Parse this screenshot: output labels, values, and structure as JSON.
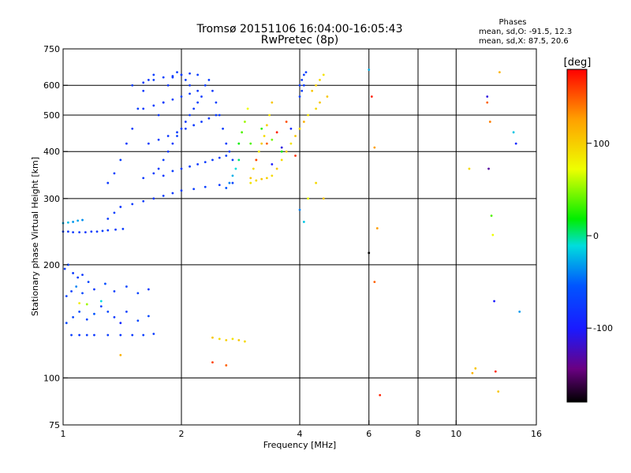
{
  "title_line1": "Tromsø 20151106 16:04:00-16:05:43",
  "title_line2": "RwPretec (8p)",
  "legend": {
    "heading": "Phases",
    "line_o": "mean, sd,O: -91.5, 12.3",
    "line_x": "mean, sd,X:  87.5, 20.6"
  },
  "colorbar": {
    "unit_label": "[deg]",
    "range": [
      -180,
      180
    ],
    "ticks": [
      {
        "value": 100,
        "label": "100"
      },
      {
        "value": 0,
        "label": "0"
      },
      {
        "value": -100,
        "label": "-100"
      }
    ]
  },
  "chart_data": {
    "type": "scatter",
    "title": "Tromsø 20151106 16:04:00-16:05:43 RwPretec (8p)",
    "xlabel": "Frequency [MHz]",
    "ylabel": "Stationary phase Virtual Height [km]",
    "x_scale": "log",
    "y_scale": "log",
    "xlim": [
      1,
      16
    ],
    "ylim": [
      75,
      750
    ],
    "x_ticks": [
      {
        "value": 1,
        "label": "1"
      },
      {
        "value": 2,
        "label": "2"
      },
      {
        "value": 4,
        "label": "4"
      },
      {
        "value": 6,
        "label": "6"
      },
      {
        "value": 8,
        "label": "8"
      },
      {
        "value": 10,
        "label": "10"
      },
      {
        "value": 16,
        "label": "16"
      }
    ],
    "y_ticks": [
      {
        "value": 75,
        "label": "75"
      },
      {
        "value": 100,
        "label": "100"
      },
      {
        "value": 200,
        "label": "200"
      },
      {
        "value": 300,
        "label": "300"
      },
      {
        "value": 400,
        "label": "400"
      },
      {
        "value": 500,
        "label": "500"
      },
      {
        "value": 600,
        "label": "600"
      },
      {
        "value": 750,
        "label": "750"
      }
    ],
    "grid_x": [
      2,
      4,
      6,
      8,
      10
    ],
    "grid_y": [
      100,
      200,
      300,
      400,
      500,
      600
    ],
    "color_encoding": "phase [deg]",
    "points": [
      [
        1.0,
        245,
        -95
      ],
      [
        1.03,
        245,
        -100
      ],
      [
        1.06,
        244,
        -98
      ],
      [
        1.1,
        244,
        -96
      ],
      [
        1.14,
        244,
        -102
      ],
      [
        1.18,
        245,
        -97
      ],
      [
        1.22,
        245,
        -99
      ],
      [
        1.26,
        246,
        -95
      ],
      [
        1.3,
        247,
        -100
      ],
      [
        1.36,
        248,
        -98
      ],
      [
        1.42,
        249,
        -97
      ],
      [
        1.0,
        258,
        -40
      ],
      [
        1.03,
        259,
        -35
      ],
      [
        1.06,
        260,
        -50
      ],
      [
        1.09,
        262,
        -45
      ],
      [
        1.12,
        263,
        -55
      ],
      [
        1.05,
        130,
        -95
      ],
      [
        1.1,
        130,
        -98
      ],
      [
        1.15,
        130,
        -97
      ],
      [
        1.2,
        130,
        -100
      ],
      [
        1.3,
        130,
        -96
      ],
      [
        1.4,
        130,
        -99
      ],
      [
        1.5,
        130,
        -98
      ],
      [
        1.6,
        130,
        -95
      ],
      [
        1.7,
        131,
        -97
      ],
      [
        1.02,
        140,
        -88
      ],
      [
        1.06,
        145,
        -90
      ],
      [
        1.1,
        150,
        -85
      ],
      [
        1.15,
        143,
        -92
      ],
      [
        1.2,
        148,
        -80
      ],
      [
        1.25,
        155,
        -95
      ],
      [
        1.3,
        150,
        -90
      ],
      [
        1.35,
        145,
        -100
      ],
      [
        1.4,
        140,
        -110
      ],
      [
        1.45,
        150,
        -95
      ],
      [
        1.55,
        142,
        -90
      ],
      [
        1.65,
        146,
        -88
      ],
      [
        1.02,
        165,
        -90
      ],
      [
        1.05,
        170,
        -95
      ],
      [
        1.08,
        175,
        -60
      ],
      [
        1.12,
        168,
        -88
      ],
      [
        1.16,
        180,
        -92
      ],
      [
        1.2,
        172,
        -100
      ],
      [
        1.28,
        178,
        -85
      ],
      [
        1.35,
        170,
        -95
      ],
      [
        1.45,
        175,
        -90
      ],
      [
        1.55,
        168,
        -92
      ],
      [
        1.65,
        172,
        -100
      ],
      [
        1.01,
        195,
        -95
      ],
      [
        1.03,
        200,
        -90
      ],
      [
        1.06,
        190,
        -98
      ],
      [
        1.09,
        185,
        -96
      ],
      [
        1.12,
        188,
        -100
      ],
      [
        1.1,
        158,
        90
      ],
      [
        1.15,
        157,
        60
      ],
      [
        1.25,
        160,
        -20
      ],
      [
        1.4,
        115,
        120
      ],
      [
        1.3,
        265,
        -98
      ],
      [
        1.35,
        275,
        -95
      ],
      [
        1.4,
        285,
        -100
      ],
      [
        1.5,
        290,
        -97
      ],
      [
        1.6,
        295,
        -96
      ],
      [
        1.7,
        300,
        -99
      ],
      [
        1.8,
        305,
        -95
      ],
      [
        1.9,
        310,
        -98
      ],
      [
        2.0,
        315,
        -100
      ],
      [
        2.15,
        318,
        -97
      ],
      [
        2.3,
        322,
        -95
      ],
      [
        2.5,
        326,
        -98
      ],
      [
        2.7,
        330,
        -90
      ],
      [
        1.3,
        330,
        -98
      ],
      [
        1.35,
        350,
        -95
      ],
      [
        1.4,
        380,
        -96
      ],
      [
        1.45,
        420,
        -100
      ],
      [
        1.5,
        460,
        -97
      ],
      [
        1.55,
        520,
        -95
      ],
      [
        1.6,
        580,
        -98
      ],
      [
        1.65,
        620,
        -100
      ],
      [
        1.7,
        640,
        -96
      ],
      [
        1.75,
        500,
        -98
      ],
      [
        1.8,
        540,
        -95
      ],
      [
        1.85,
        600,
        -100
      ],
      [
        1.9,
        630,
        -97
      ],
      [
        1.95,
        650,
        -96
      ],
      [
        2.0,
        640,
        -98
      ],
      [
        2.05,
        620,
        -95
      ],
      [
        2.1,
        600,
        -100
      ],
      [
        1.75,
        360,
        -97
      ],
      [
        1.8,
        380,
        -96
      ],
      [
        1.85,
        400,
        -98
      ],
      [
        1.9,
        420,
        -100
      ],
      [
        1.95,
        440,
        -95
      ],
      [
        2.0,
        460,
        -97
      ],
      [
        2.05,
        480,
        -96
      ],
      [
        2.1,
        500,
        -98
      ],
      [
        2.15,
        520,
        -100
      ],
      [
        2.2,
        540,
        -95
      ],
      [
        2.25,
        560,
        -98
      ],
      [
        2.3,
        600,
        -97
      ],
      [
        2.35,
        620,
        -96
      ],
      [
        2.4,
        580,
        -100
      ],
      [
        2.45,
        540,
        -95
      ],
      [
        2.5,
        500,
        -98
      ],
      [
        2.55,
        460,
        -97
      ],
      [
        2.6,
        420,
        -96
      ],
      [
        2.65,
        400,
        -100
      ],
      [
        2.7,
        380,
        -95
      ],
      [
        1.6,
        340,
        -98
      ],
      [
        1.7,
        350,
        -97
      ],
      [
        1.8,
        345,
        -100
      ],
      [
        1.9,
        355,
        -96
      ],
      [
        2.0,
        360,
        -98
      ],
      [
        2.1,
        365,
        -95
      ],
      [
        2.2,
        370,
        -100
      ],
      [
        2.3,
        375,
        -97
      ],
      [
        2.4,
        380,
        -96
      ],
      [
        2.5,
        385,
        -98
      ],
      [
        2.6,
        390,
        -95
      ],
      [
        1.65,
        420,
        -98
      ],
      [
        1.75,
        430,
        -96
      ],
      [
        1.85,
        440,
        -100
      ],
      [
        1.95,
        450,
        -97
      ],
      [
        2.05,
        460,
        -95
      ],
      [
        2.15,
        470,
        -98
      ],
      [
        2.25,
        480,
        -96
      ],
      [
        2.35,
        490,
        -100
      ],
      [
        2.45,
        500,
        -97
      ],
      [
        1.6,
        520,
        -100
      ],
      [
        1.7,
        530,
        -96
      ],
      [
        1.8,
        540,
        -98
      ],
      [
        1.9,
        550,
        -97
      ],
      [
        2.0,
        560,
        -95
      ],
      [
        2.1,
        570,
        -98
      ],
      [
        2.2,
        580,
        -100
      ],
      [
        1.5,
        600,
        -97
      ],
      [
        1.6,
        610,
        -98
      ],
      [
        1.7,
        620,
        -96
      ],
      [
        1.8,
        630,
        -95
      ],
      [
        1.9,
        635,
        -100
      ],
      [
        2.0,
        640,
        -98
      ],
      [
        2.1,
        645,
        -97
      ],
      [
        2.2,
        640,
        -96
      ],
      [
        2.6,
        320,
        -80
      ],
      [
        2.65,
        330,
        -60
      ],
      [
        2.7,
        345,
        -40
      ],
      [
        2.75,
        360,
        -20
      ],
      [
        2.8,
        380,
        0
      ],
      [
        2.8,
        420,
        20
      ],
      [
        2.85,
        450,
        40
      ],
      [
        2.9,
        480,
        60
      ],
      [
        2.95,
        520,
        80
      ],
      [
        3.0,
        340,
        110
      ],
      [
        3.05,
        360,
        100
      ],
      [
        3.1,
        380,
        120
      ],
      [
        3.15,
        400,
        90
      ],
      [
        3.2,
        420,
        110
      ],
      [
        3.25,
        440,
        100
      ],
      [
        3.3,
        470,
        105
      ],
      [
        3.35,
        500,
        95
      ],
      [
        3.4,
        540,
        110
      ],
      [
        3.0,
        330,
        95
      ],
      [
        3.1,
        335,
        100
      ],
      [
        3.2,
        338,
        110
      ],
      [
        3.3,
        340,
        105
      ],
      [
        3.4,
        345,
        100
      ],
      [
        3.5,
        360,
        110
      ],
      [
        3.6,
        380,
        100
      ],
      [
        3.7,
        400,
        105
      ],
      [
        3.8,
        420,
        95
      ],
      [
        3.9,
        440,
        110
      ],
      [
        4.0,
        460,
        100
      ],
      [
        4.1,
        480,
        120
      ],
      [
        4.2,
        500,
        95
      ],
      [
        3.1,
        380,
        160
      ],
      [
        3.3,
        420,
        150
      ],
      [
        3.5,
        450,
        170
      ],
      [
        3.7,
        480,
        155
      ],
      [
        3.9,
        390,
        165
      ],
      [
        3.0,
        420,
        40
      ],
      [
        3.2,
        460,
        30
      ],
      [
        3.4,
        430,
        50
      ],
      [
        3.6,
        400,
        20
      ],
      [
        3.4,
        370,
        -120
      ],
      [
        3.6,
        410,
        -130
      ],
      [
        3.8,
        460,
        -110
      ],
      [
        4.0,
        600,
        -100
      ],
      [
        4.05,
        620,
        -98
      ],
      [
        4.1,
        640,
        -97
      ],
      [
        4.15,
        650,
        -96
      ],
      [
        4.0,
        560,
        -95
      ],
      [
        4.05,
        580,
        -100
      ],
      [
        4.1,
        600,
        -98
      ],
      [
        4.3,
        580,
        110
      ],
      [
        4.4,
        600,
        105
      ],
      [
        4.5,
        620,
        100
      ],
      [
        4.6,
        640,
        95
      ],
      [
        4.7,
        560,
        110
      ],
      [
        4.4,
        520,
        100
      ],
      [
        4.5,
        540,
        110
      ],
      [
        4.2,
        300,
        80
      ],
      [
        4.4,
        330,
        100
      ],
      [
        4.6,
        300,
        110
      ],
      [
        4.0,
        280,
        -60
      ],
      [
        4.1,
        260,
        -30
      ],
      [
        2.4,
        128,
        110
      ],
      [
        2.5,
        127,
        100
      ],
      [
        2.6,
        126,
        105
      ],
      [
        2.7,
        127,
        95
      ],
      [
        2.8,
        126,
        110
      ],
      [
        2.9,
        125,
        100
      ],
      [
        2.4,
        110,
        160
      ],
      [
        2.6,
        108,
        150
      ],
      [
        6.0,
        660,
        -40
      ],
      [
        6.1,
        560,
        170
      ],
      [
        6.2,
        410,
        130
      ],
      [
        6.3,
        250,
        130
      ],
      [
        6.2,
        180,
        150
      ],
      [
        6.0,
        215,
        -200
      ],
      [
        6.4,
        90,
        170
      ],
      [
        10.8,
        360,
        100
      ],
      [
        11.0,
        103,
        120
      ],
      [
        11.2,
        106,
        110
      ],
      [
        12.0,
        560,
        -130
      ],
      [
        12.0,
        540,
        150
      ],
      [
        12.2,
        480,
        140
      ],
      [
        12.1,
        360,
        -150
      ],
      [
        12.3,
        270,
        40
      ],
      [
        12.4,
        240,
        80
      ],
      [
        12.5,
        160,
        -120
      ],
      [
        12.6,
        104,
        170
      ],
      [
        12.8,
        92,
        110
      ],
      [
        12.9,
        650,
        120
      ],
      [
        14.0,
        450,
        -30
      ],
      [
        14.2,
        420,
        -110
      ],
      [
        14.5,
        150,
        -50
      ]
    ]
  }
}
